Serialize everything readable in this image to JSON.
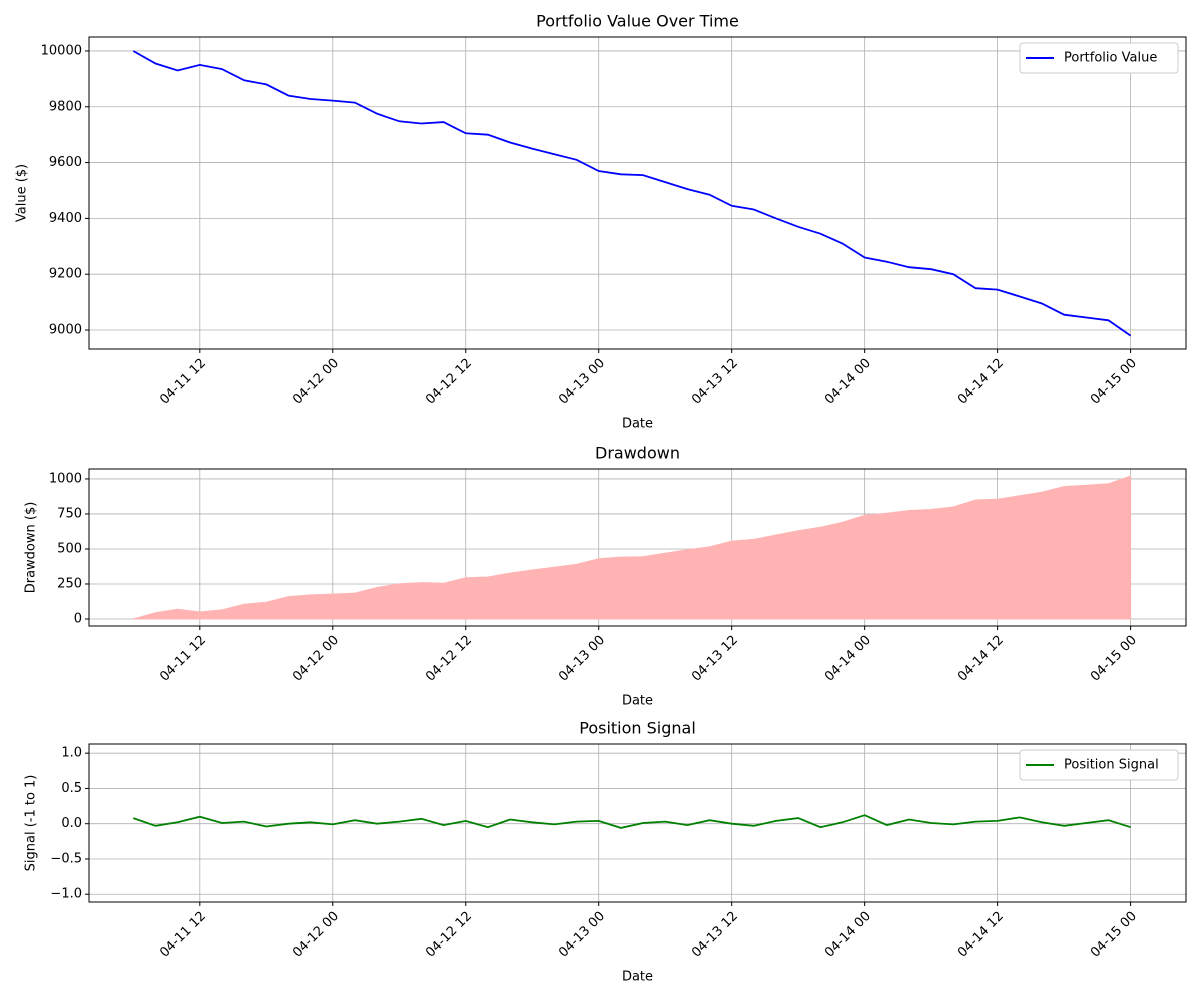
{
  "chart_data": [
    {
      "type": "line",
      "title": "Portfolio Value Over Time",
      "xlabel": "Date",
      "ylabel": "Value ($)",
      "x": [
        "04-11 06",
        "04-11 08",
        "04-11 10",
        "04-11 12",
        "04-11 14",
        "04-11 16",
        "04-11 18",
        "04-11 20",
        "04-11 22",
        "04-12 00",
        "04-12 02",
        "04-12 04",
        "04-12 06",
        "04-12 08",
        "04-12 10",
        "04-12 12",
        "04-12 14",
        "04-12 16",
        "04-12 18",
        "04-12 20",
        "04-12 22",
        "04-13 00",
        "04-13 02",
        "04-13 04",
        "04-13 06",
        "04-13 08",
        "04-13 10",
        "04-13 12",
        "04-13 14",
        "04-13 16",
        "04-13 18",
        "04-13 20",
        "04-13 22",
        "04-14 00",
        "04-14 02",
        "04-14 04",
        "04-14 06",
        "04-14 08",
        "04-14 10",
        "04-14 12",
        "04-14 14",
        "04-14 16",
        "04-14 18",
        "04-14 20",
        "04-14 22",
        "04-15 00"
      ],
      "series": [
        {
          "name": "Portfolio Value",
          "color": "#0000ff",
          "values": [
            10000,
            9955,
            9930,
            9950,
            9935,
            9895,
            9880,
            9840,
            9828,
            9822,
            9815,
            9775,
            9748,
            9740,
            9745,
            9705,
            9700,
            9672,
            9650,
            9630,
            9610,
            9570,
            9558,
            9555,
            9530,
            9505,
            9485,
            9445,
            9432,
            9400,
            9370,
            9345,
            9310,
            9260,
            9245,
            9225,
            9218,
            9200,
            9150,
            9145,
            9120,
            9095,
            9055,
            9045,
            9035,
            8980
          ]
        }
      ],
      "xlim": [
        "04-11 02",
        "04-15 05"
      ],
      "xticks": [
        "04-11 12",
        "04-12 00",
        "04-12 12",
        "04-13 00",
        "04-13 12",
        "04-14 00",
        "04-14 12",
        "04-15 00"
      ],
      "ylim": [
        8932,
        10050
      ],
      "yticks": [
        9000,
        9200,
        9400,
        9600,
        9800,
        10000
      ],
      "grid": true,
      "legend": "upper right"
    },
    {
      "type": "area",
      "title": "Drawdown",
      "xlabel": "Date",
      "ylabel": "Drawdown ($)",
      "x": [
        "04-11 06",
        "04-11 08",
        "04-11 10",
        "04-11 12",
        "04-11 14",
        "04-11 16",
        "04-11 18",
        "04-11 20",
        "04-11 22",
        "04-12 00",
        "04-12 02",
        "04-12 04",
        "04-12 06",
        "04-12 08",
        "04-12 10",
        "04-12 12",
        "04-12 14",
        "04-12 16",
        "04-12 18",
        "04-12 20",
        "04-12 22",
        "04-13 00",
        "04-13 02",
        "04-13 04",
        "04-13 06",
        "04-13 08",
        "04-13 10",
        "04-13 12",
        "04-13 14",
        "04-13 16",
        "04-13 18",
        "04-13 20",
        "04-13 22",
        "04-14 00",
        "04-14 02",
        "04-14 04",
        "04-14 06",
        "04-14 08",
        "04-14 10",
        "04-14 12",
        "04-14 14",
        "04-14 16",
        "04-14 18",
        "04-14 20",
        "04-14 22",
        "04-15 00"
      ],
      "series": [
        {
          "color": "#ffb3b3",
          "values": [
            0,
            45,
            70,
            50,
            65,
            105,
            120,
            160,
            172,
            178,
            185,
            225,
            252,
            260,
            255,
            295,
            300,
            328,
            350,
            370,
            390,
            430,
            442,
            445,
            470,
            495,
            515,
            555,
            568,
            600,
            630,
            655,
            690,
            740,
            755,
            775,
            782,
            800,
            850,
            855,
            880,
            905,
            945,
            955,
            965,
            1020
          ]
        }
      ],
      "xlim": [
        "04-11 02",
        "04-15 05"
      ],
      "xticks": [
        "04-11 12",
        "04-12 00",
        "04-12 12",
        "04-13 00",
        "04-13 12",
        "04-14 00",
        "04-14 12",
        "04-15 00"
      ],
      "ylim": [
        -50,
        1071
      ],
      "yticks": [
        0,
        250,
        500,
        750,
        1000
      ],
      "grid": true
    },
    {
      "type": "line",
      "title": "Position Signal",
      "xlabel": "Date",
      "ylabel": "Signal (-1 to 1)",
      "x": [
        "04-11 06",
        "04-11 08",
        "04-11 10",
        "04-11 12",
        "04-11 14",
        "04-11 16",
        "04-11 18",
        "04-11 20",
        "04-11 22",
        "04-12 00",
        "04-12 02",
        "04-12 04",
        "04-12 06",
        "04-12 08",
        "04-12 10",
        "04-12 12",
        "04-12 14",
        "04-12 16",
        "04-12 18",
        "04-12 20",
        "04-12 22",
        "04-13 00",
        "04-13 02",
        "04-13 04",
        "04-13 06",
        "04-13 08",
        "04-13 10",
        "04-13 12",
        "04-13 14",
        "04-13 16",
        "04-13 18",
        "04-13 20",
        "04-13 22",
        "04-14 00",
        "04-14 02",
        "04-14 04",
        "04-14 06",
        "04-14 08",
        "04-14 10",
        "04-14 12",
        "04-14 14",
        "04-14 16",
        "04-14 18",
        "04-14 20",
        "04-14 22",
        "04-15 00"
      ],
      "series": [
        {
          "name": "Position Signal",
          "color": "#008000",
          "values": [
            0.08,
            -0.03,
            0.02,
            0.1,
            0.01,
            0.03,
            -0.04,
            0.0,
            0.02,
            -0.01,
            0.05,
            0.0,
            0.03,
            0.07,
            -0.02,
            0.04,
            -0.05,
            0.06,
            0.02,
            -0.01,
            0.03,
            0.04,
            -0.06,
            0.01,
            0.03,
            -0.02,
            0.05,
            0.0,
            -0.03,
            0.04,
            0.08,
            -0.05,
            0.02,
            0.12,
            -0.02,
            0.06,
            0.01,
            -0.01,
            0.03,
            0.04,
            0.09,
            0.02,
            -0.03,
            0.01,
            0.05,
            -0.05
          ]
        }
      ],
      "xlim": [
        "04-11 02",
        "04-15 05"
      ],
      "xticks": [
        "04-11 12",
        "04-12 00",
        "04-12 12",
        "04-13 00",
        "04-13 12",
        "04-14 00",
        "04-14 12",
        "04-15 00"
      ],
      "ylim": [
        -1.11,
        1.13
      ],
      "yticks": [
        {
          "value": -1,
          "label": "−1.0"
        },
        {
          "value": -0.5,
          "label": "−0.5"
        },
        {
          "value": 0,
          "label": "0.0"
        },
        {
          "value": 0.5,
          "label": "0.5"
        },
        {
          "value": 1,
          "label": "1.0"
        }
      ],
      "grid": true,
      "legend": "upper right"
    }
  ]
}
